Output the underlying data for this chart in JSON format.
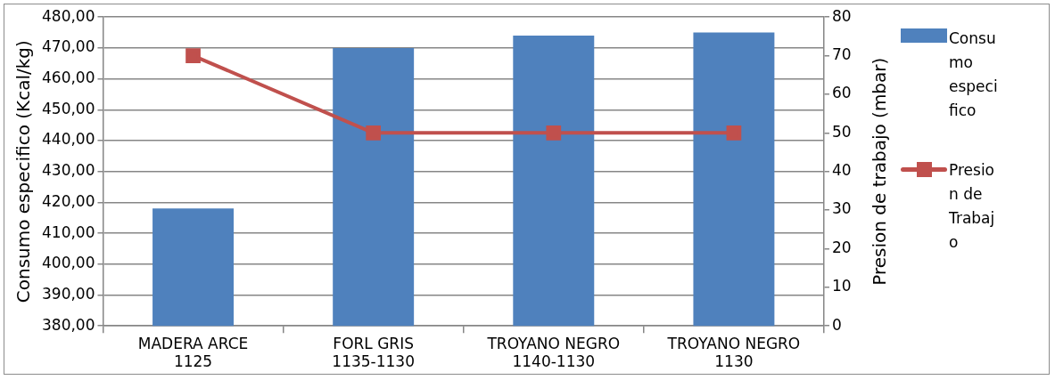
{
  "chart_data": {
    "type": "bar",
    "ylabel": "Consumo especifico (Kcal/kg)",
    "y2label": "Presion de trabajo (mbar)",
    "categories": [
      "MADERA ARCE 1125",
      "FORL GRIS 1135-1130",
      "TROYANO NEGRO 1140-1130",
      "TROYANO NEGRO 1130"
    ],
    "series": [
      {
        "name": "Consumo especifico",
        "color": "#4f81bd",
        "values": [
          418,
          470,
          474,
          475
        ]
      },
      {
        "name": "Presion de Trabajo",
        "type": "line",
        "axis": "y2",
        "color": "#c0504d",
        "marker": "square",
        "values": [
          70,
          50,
          50,
          50
        ]
      }
    ],
    "ylim": [
      380,
      480
    ],
    "yticks": [
      {
        "value": 380,
        "label": "380,00"
      },
      {
        "value": 390,
        "label": "390,00"
      },
      {
        "value": 400,
        "label": "400,00"
      },
      {
        "value": 410,
        "label": "410,00"
      },
      {
        "value": 420,
        "label": "420,00"
      },
      {
        "value": 430,
        "label": "430,00"
      },
      {
        "value": 440,
        "label": "440,00"
      },
      {
        "value": 450,
        "label": "450,00"
      },
      {
        "value": 460,
        "label": "460,00"
      },
      {
        "value": 470,
        "label": "470,00"
      },
      {
        "value": 480,
        "label": "480,00"
      }
    ],
    "y2lim": [
      0,
      80
    ],
    "y2ticks": [
      0,
      10,
      20,
      30,
      40,
      50,
      60,
      70,
      80
    ],
    "grid": "y",
    "legend": "right"
  }
}
